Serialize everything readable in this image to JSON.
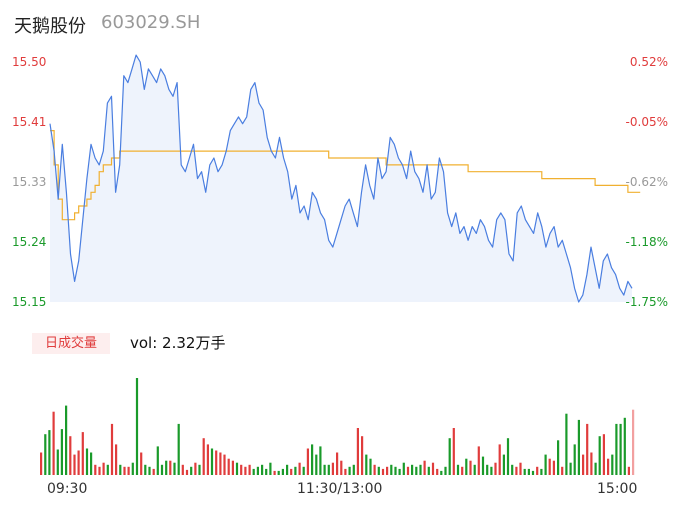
{
  "header": {
    "name": "天鹅股份",
    "code": "603029.SH"
  },
  "colors": {
    "up": "#e03c3c",
    "down": "#1a9a2a",
    "neutral": "#999999",
    "price_line": "#4a7ee0",
    "avg_line": "#f0b030"
  },
  "chart_data": {
    "type": "line",
    "price_axis": {
      "ticks": [
        "15.50",
        "15.41",
        "15.33",
        "15.24",
        "15.15"
      ],
      "range": [
        15.15,
        15.5
      ]
    },
    "pct_axis": {
      "ticks": [
        "0.52%",
        "-0.05%",
        "-0.62%",
        "-1.18%",
        "-1.75%"
      ]
    },
    "x_ticks": [
      "09:30",
      "11:30/13:00",
      "15:00"
    ],
    "price": [
      15.41,
      15.37,
      15.3,
      15.38,
      15.31,
      15.22,
      15.18,
      15.21,
      15.27,
      15.33,
      15.38,
      15.36,
      15.35,
      15.37,
      15.44,
      15.45,
      15.31,
      15.35,
      15.48,
      15.47,
      15.49,
      15.51,
      15.5,
      15.46,
      15.49,
      15.48,
      15.47,
      15.49,
      15.48,
      15.46,
      15.45,
      15.47,
      15.35,
      15.34,
      15.36,
      15.38,
      15.33,
      15.34,
      15.31,
      15.35,
      15.36,
      15.34,
      15.35,
      15.37,
      15.4,
      15.41,
      15.42,
      15.41,
      15.42,
      15.46,
      15.47,
      15.44,
      15.43,
      15.39,
      15.37,
      15.36,
      15.39,
      15.36,
      15.34,
      15.3,
      15.32,
      15.28,
      15.29,
      15.27,
      15.31,
      15.3,
      15.28,
      15.27,
      15.24,
      15.23,
      15.25,
      15.27,
      15.29,
      15.3,
      15.28,
      15.26,
      15.31,
      15.35,
      15.32,
      15.3,
      15.36,
      15.33,
      15.34,
      15.39,
      15.38,
      15.36,
      15.35,
      15.33,
      15.37,
      15.34,
      15.33,
      15.31,
      15.35,
      15.3,
      15.31,
      15.36,
      15.34,
      15.28,
      15.26,
      15.28,
      15.25,
      15.26,
      15.24,
      15.26,
      15.25,
      15.27,
      15.26,
      15.24,
      15.23,
      15.27,
      15.28,
      15.27,
      15.22,
      15.21,
      15.28,
      15.29,
      15.27,
      15.26,
      15.25,
      15.28,
      15.26,
      15.23,
      15.25,
      15.26,
      15.23,
      15.24,
      15.22,
      15.2,
      15.17,
      15.15,
      15.16,
      15.19,
      15.23,
      15.2,
      15.17,
      15.21,
      15.22,
      15.2,
      15.19,
      15.17,
      15.16,
      15.18,
      15.17
    ],
    "avg": [
      15.4,
      15.35,
      15.3,
      15.27,
      15.27,
      15.27,
      15.28,
      15.29,
      15.29,
      15.3,
      15.31,
      15.32,
      15.34,
      15.35,
      15.35,
      15.36,
      15.36,
      15.37,
      15.37,
      15.37,
      15.37,
      15.37,
      15.37,
      15.37,
      15.37,
      15.37,
      15.37,
      15.37,
      15.37,
      15.37,
      15.37,
      15.37,
      15.37,
      15.37,
      15.37,
      15.37,
      15.37,
      15.37,
      15.37,
      15.37,
      15.37,
      15.37,
      15.37,
      15.37,
      15.37,
      15.37,
      15.37,
      15.37,
      15.37,
      15.37,
      15.37,
      15.37,
      15.37,
      15.37,
      15.37,
      15.37,
      15.37,
      15.37,
      15.37,
      15.37,
      15.37,
      15.37,
      15.37,
      15.37,
      15.37,
      15.37,
      15.37,
      15.37,
      15.36,
      15.36,
      15.36,
      15.36,
      15.36,
      15.36,
      15.36,
      15.36,
      15.36,
      15.36,
      15.36,
      15.36,
      15.36,
      15.36,
      15.35,
      15.35,
      15.35,
      15.35,
      15.35,
      15.35,
      15.35,
      15.35,
      15.35,
      15.35,
      15.35,
      15.35,
      15.35,
      15.35,
      15.35,
      15.35,
      15.35,
      15.35,
      15.35,
      15.35,
      15.34,
      15.34,
      15.34,
      15.34,
      15.34,
      15.34,
      15.34,
      15.34,
      15.34,
      15.34,
      15.34,
      15.34,
      15.34,
      15.34,
      15.34,
      15.34,
      15.34,
      15.34,
      15.33,
      15.33,
      15.33,
      15.33,
      15.33,
      15.33,
      15.33,
      15.33,
      15.33,
      15.33,
      15.33,
      15.33,
      15.33,
      15.32,
      15.32,
      15.32,
      15.32,
      15.32,
      15.32,
      15.32,
      15.32,
      15.31,
      15.31,
      15.31,
      15.31
    ]
  },
  "volume_panel": {
    "tab_label": "日成交量",
    "vol_text": "vol: 2.32万手",
    "volumes": [
      22,
      40,
      44,
      62,
      25,
      45,
      68,
      38,
      20,
      24,
      42,
      26,
      22,
      10,
      8,
      12,
      10,
      50,
      30,
      10,
      8,
      8,
      12,
      95,
      22,
      10,
      8,
      6,
      28,
      10,
      14,
      14,
      12,
      50,
      10,
      5,
      8,
      12,
      10,
      36,
      30,
      26,
      24,
      22,
      20,
      16,
      14,
      12,
      10,
      8,
      10,
      6,
      8,
      10,
      6,
      12,
      4,
      4,
      6,
      10,
      6,
      8,
      12,
      8,
      26,
      30,
      20,
      28,
      10,
      10,
      12,
      22,
      14,
      6,
      8,
      10,
      46,
      38,
      20,
      16,
      10,
      8,
      6,
      8,
      10,
      8,
      6,
      12,
      8,
      10,
      8,
      10,
      14,
      8,
      12,
      6,
      4,
      8,
      36,
      46,
      10,
      8,
      16,
      14,
      10,
      28,
      18,
      10,
      8,
      12,
      30,
      20,
      36,
      10,
      8,
      12,
      6,
      6,
      4,
      8,
      6,
      20,
      16,
      14,
      34,
      8,
      60,
      12,
      30,
      54,
      20,
      50,
      22,
      12,
      38,
      40,
      16,
      20,
      50,
      50,
      56,
      8,
      64
    ]
  }
}
